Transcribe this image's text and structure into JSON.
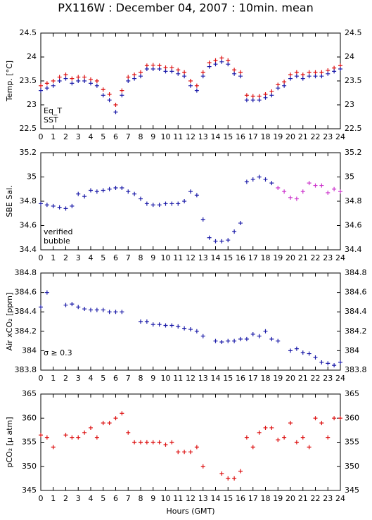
{
  "chart_data": [
    {
      "type": "scatter",
      "title": "PX116W : December 04, 2007 : 10min. mean",
      "ylabel": "Temp. [°C]",
      "x": [
        0,
        0.5,
        1,
        1.5,
        2,
        2.5,
        3,
        3.5,
        4,
        4.5,
        5,
        5.5,
        6,
        6.5,
        7,
        7.5,
        8,
        8.5,
        9,
        9.5,
        10,
        10.5,
        11,
        11.5,
        12,
        12.5,
        13,
        13.5,
        14,
        14.5,
        15,
        15.5,
        16,
        16.5,
        17,
        17.5,
        18,
        18.5,
        19,
        19.5,
        20,
        20.5,
        21,
        21.5,
        22,
        22.5,
        23,
        23.5,
        24
      ],
      "xlim": [
        0,
        24
      ],
      "xticks": [
        0,
        1,
        2,
        3,
        4,
        5,
        6,
        7,
        8,
        9,
        10,
        11,
        12,
        13,
        14,
        15,
        16,
        17,
        18,
        19,
        20,
        21,
        22,
        23,
        24
      ],
      "ylim": [
        22.5,
        24.5
      ],
      "yticks": [
        22.5,
        23,
        23.5,
        24,
        24.5
      ],
      "series": [
        {
          "name": "Eq_T",
          "color": "#dd1111",
          "values": [
            23.4,
            23.45,
            23.5,
            23.58,
            23.63,
            23.55,
            23.58,
            23.58,
            23.53,
            23.5,
            23.32,
            23.22,
            23.0,
            23.3,
            23.58,
            23.63,
            23.68,
            23.82,
            23.83,
            23.82,
            23.78,
            23.78,
            23.73,
            23.68,
            23.5,
            23.4,
            23.68,
            23.88,
            23.93,
            23.98,
            23.93,
            23.73,
            23.68,
            23.2,
            23.18,
            23.18,
            23.22,
            23.28,
            23.42,
            23.48,
            23.63,
            23.68,
            23.63,
            23.68,
            23.68,
            23.68,
            23.72,
            23.77,
            23.82
          ]
        },
        {
          "name": "SST",
          "color": "#1a1aa8",
          "values": [
            23.3,
            23.35,
            23.4,
            23.5,
            23.55,
            23.45,
            23.5,
            23.5,
            23.45,
            23.4,
            23.2,
            23.1,
            22.85,
            23.2,
            23.5,
            23.55,
            23.6,
            23.75,
            23.75,
            23.75,
            23.7,
            23.7,
            23.65,
            23.6,
            23.4,
            23.3,
            23.6,
            23.8,
            23.85,
            23.9,
            23.85,
            23.65,
            23.6,
            23.1,
            23.1,
            23.1,
            23.15,
            23.2,
            23.35,
            23.4,
            23.55,
            23.6,
            23.55,
            23.6,
            23.6,
            23.6,
            23.65,
            23.7,
            23.75
          ]
        }
      ]
    },
    {
      "type": "scatter",
      "ylabel": "SBE Sal.",
      "x": [
        0,
        0.5,
        1,
        1.5,
        2,
        2.5,
        3,
        3.5,
        4,
        4.5,
        5,
        5.5,
        6,
        6.5,
        7,
        7.5,
        8,
        8.5,
        9,
        9.5,
        10,
        10.5,
        11,
        11.5,
        12,
        12.5,
        13,
        13.5,
        14,
        14.5,
        15,
        15.5,
        16,
        16.5,
        17,
        17.5,
        18,
        18.5,
        19,
        19.5,
        20,
        20.5,
        21,
        21.5,
        22,
        22.5,
        23,
        23.5,
        24
      ],
      "xlim": [
        0,
        24
      ],
      "xticks": [
        0,
        1,
        2,
        3,
        4,
        5,
        6,
        7,
        8,
        9,
        10,
        11,
        12,
        13,
        14,
        15,
        16,
        17,
        18,
        19,
        20,
        21,
        22,
        23,
        24
      ],
      "ylim": [
        34.4,
        35.2
      ],
      "yticks": [
        34.4,
        34.6,
        34.8,
        35,
        35.2
      ],
      "series": [
        {
          "name": "verified",
          "color": "#1a1aa8",
          "values": [
            34.78,
            34.77,
            34.76,
            34.75,
            34.74,
            34.76,
            34.86,
            34.84,
            34.89,
            34.88,
            34.89,
            34.9,
            34.91,
            34.91,
            34.88,
            34.86,
            34.82,
            34.78,
            34.77,
            34.77,
            34.78,
            34.78,
            34.78,
            34.8,
            34.88,
            34.85,
            34.65,
            34.5,
            34.47,
            34.47,
            34.48,
            34.55,
            34.62,
            34.96,
            34.98,
            35.0,
            34.98,
            34.95,
            null,
            null,
            null,
            null,
            null,
            null,
            null,
            null,
            null,
            null,
            null
          ]
        },
        {
          "name": "bubble",
          "color": "#cc33cc",
          "values": [
            null,
            null,
            null,
            null,
            null,
            null,
            null,
            null,
            null,
            null,
            null,
            null,
            null,
            null,
            null,
            null,
            null,
            null,
            null,
            null,
            null,
            null,
            null,
            null,
            null,
            null,
            null,
            null,
            null,
            null,
            null,
            null,
            null,
            null,
            null,
            null,
            null,
            null,
            34.91,
            34.88,
            34.83,
            34.82,
            34.88,
            34.95,
            34.93,
            34.93,
            34.87,
            34.9,
            34.88
          ]
        }
      ]
    },
    {
      "type": "scatter",
      "ylabel": "Air xCO₂ [ppm]",
      "annotation": "σ ≥ 0.3",
      "annotation_color": "#cc33cc",
      "x": [
        0,
        0.5,
        1,
        1.5,
        2,
        2.5,
        3,
        3.5,
        4,
        4.5,
        5,
        5.5,
        6,
        6.5,
        7,
        7.5,
        8,
        8.5,
        9,
        9.5,
        10,
        10.5,
        11,
        11.5,
        12,
        12.5,
        13,
        13.5,
        14,
        14.5,
        15,
        15.5,
        16,
        16.5,
        17,
        17.5,
        18,
        18.5,
        19,
        19.5,
        20,
        20.5,
        21,
        21.5,
        22,
        22.5,
        23,
        23.5,
        24
      ],
      "xlim": [
        0,
        24
      ],
      "xticks": [
        0,
        1,
        2,
        3,
        4,
        5,
        6,
        7,
        8,
        9,
        10,
        11,
        12,
        13,
        14,
        15,
        16,
        17,
        18,
        19,
        20,
        21,
        22,
        23,
        24
      ],
      "ylim": [
        383.8,
        384.8
      ],
      "yticks": [
        383.8,
        384,
        384.2,
        384.4,
        384.6,
        384.8
      ],
      "series": [
        {
          "color": "#1a1aa8",
          "values": [
            384.45,
            384.6,
            null,
            null,
            384.47,
            384.48,
            384.45,
            384.43,
            384.42,
            384.42,
            384.42,
            384.4,
            384.4,
            384.4,
            null,
            null,
            384.3,
            384.3,
            384.27,
            384.27,
            384.26,
            384.26,
            384.25,
            384.23,
            384.22,
            384.2,
            384.15,
            null,
            384.1,
            384.09,
            384.1,
            384.1,
            384.12,
            384.12,
            384.17,
            384.15,
            384.2,
            384.12,
            384.1,
            null,
            384.0,
            384.02,
            383.98,
            383.97,
            383.93,
            383.88,
            383.87,
            383.85,
            383.88
          ]
        }
      ]
    },
    {
      "type": "scatter",
      "ylabel": "pCO₂ [μ atm]",
      "xlabel": "Hours (GMT)",
      "x": [
        0,
        0.5,
        1,
        1.5,
        2,
        2.5,
        3,
        3.5,
        4,
        4.5,
        5,
        5.5,
        6,
        6.5,
        7,
        7.5,
        8,
        8.5,
        9,
        9.5,
        10,
        10.5,
        11,
        11.5,
        12,
        12.5,
        13,
        13.5,
        14,
        14.5,
        15,
        15.5,
        16,
        16.5,
        17,
        17.5,
        18,
        18.5,
        19,
        19.5,
        20,
        20.5,
        21,
        21.5,
        22,
        22.5,
        23,
        23.5,
        24
      ],
      "xlim": [
        0,
        24
      ],
      "xticks": [
        0,
        1,
        2,
        3,
        4,
        5,
        6,
        7,
        8,
        9,
        10,
        11,
        12,
        13,
        14,
        15,
        16,
        17,
        18,
        19,
        20,
        21,
        22,
        23,
        24
      ],
      "ylim": [
        345,
        365
      ],
      "yticks": [
        345,
        350,
        355,
        360,
        365
      ],
      "series": [
        {
          "color": "#dd1111",
          "values": [
            356.5,
            356,
            354,
            null,
            356.5,
            356,
            356,
            357,
            358,
            356,
            359,
            359,
            360,
            361,
            357,
            355,
            355,
            355,
            355,
            355,
            354.5,
            355,
            353,
            353,
            353,
            354,
            350,
            null,
            null,
            348.5,
            347.5,
            347.5,
            349,
            356,
            354,
            357,
            358,
            358,
            355.5,
            356,
            359,
            355,
            356,
            354,
            360,
            359,
            356,
            360,
            360
          ]
        }
      ]
    }
  ]
}
